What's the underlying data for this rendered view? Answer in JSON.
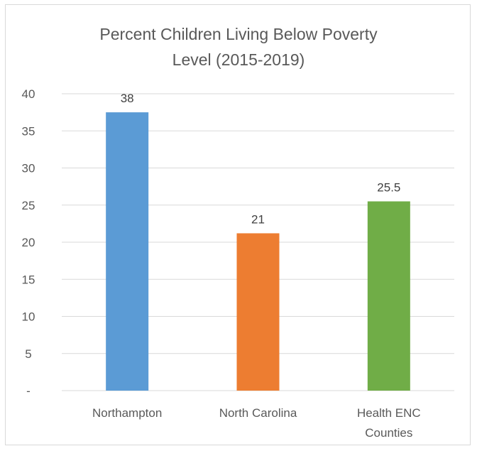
{
  "chart_data": {
    "type": "bar",
    "title_lines": [
      "Percent Children Living Below Poverty",
      "Level (2015-2019)"
    ],
    "categories": [
      {
        "name": "Northampton",
        "lines": [
          "Northampton"
        ]
      },
      {
        "name": "North Carolina",
        "lines": [
          "North Carolina"
        ]
      },
      {
        "name": "Health ENC Counties",
        "lines": [
          "Health ENC",
          "Counties"
        ]
      }
    ],
    "values": [
      37.5,
      21.2,
      25.5
    ],
    "data_labels": [
      "38",
      "21",
      "25.5"
    ],
    "bar_colors": [
      "#5b9bd5",
      "#ed7d31",
      "#70ad47"
    ],
    "ylim": [
      0,
      40
    ],
    "y_ticks": [
      0,
      5,
      10,
      15,
      20,
      25,
      30,
      35,
      40
    ],
    "y_tick_labels": [
      "-",
      "5",
      "10",
      "15",
      "20",
      "25",
      "30",
      "35",
      "40"
    ],
    "grid": true,
    "legend": "none",
    "xlabel": "",
    "ylabel": ""
  }
}
